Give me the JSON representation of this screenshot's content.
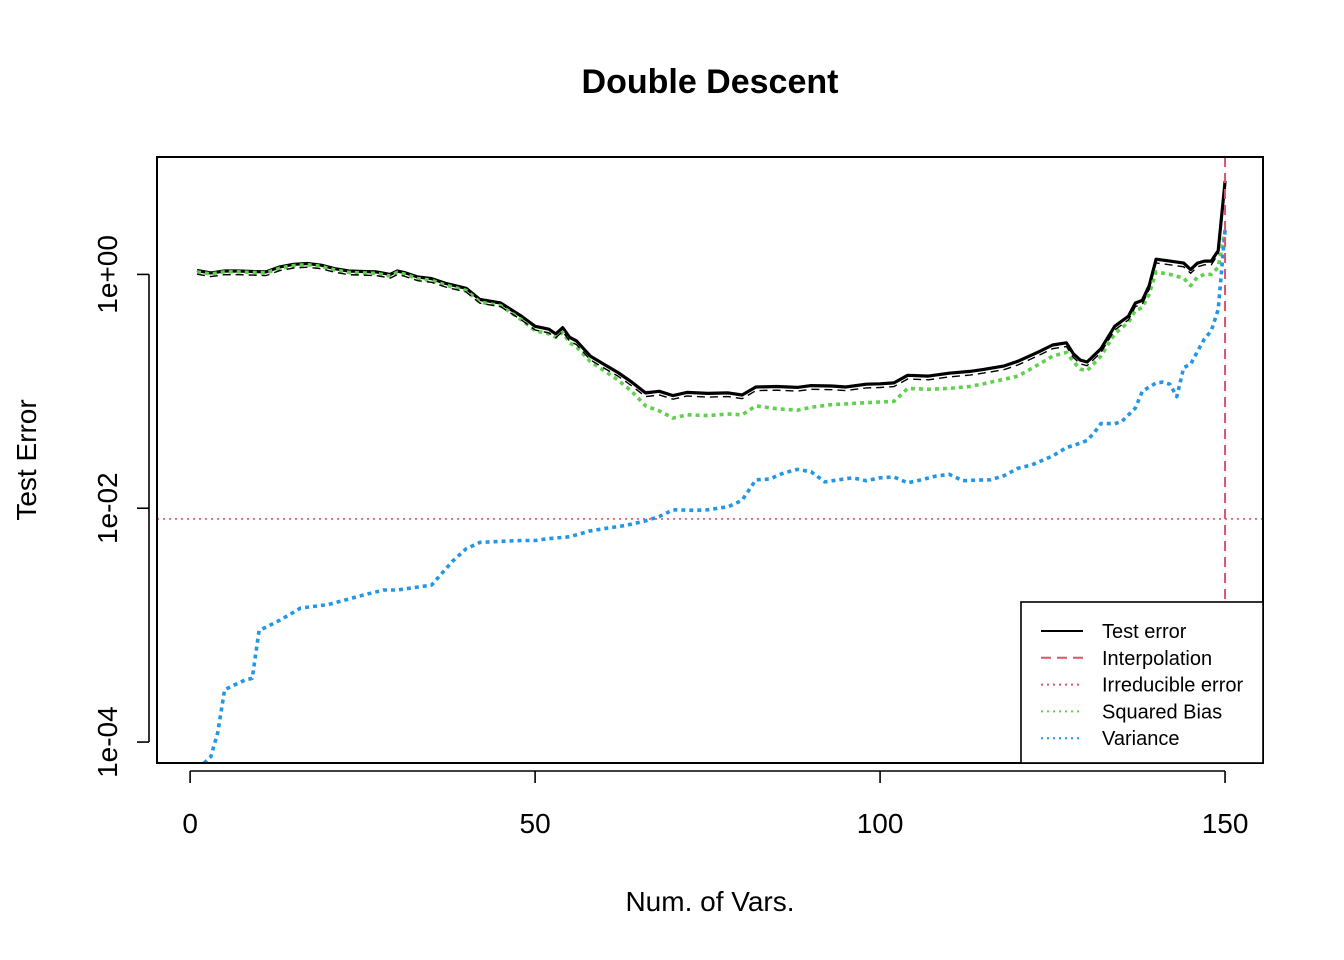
{
  "chart_data": {
    "type": "line",
    "title": "Double Descent",
    "xlabel": "Num. of Vars.",
    "ylabel": "Test Error",
    "x_ticks": [
      0,
      50,
      100,
      150
    ],
    "x_tick_labels": [
      "0",
      "50",
      "100",
      "150"
    ],
    "y_ticks": [
      0.0001,
      0.01,
      1
    ],
    "y_tick_labels": [
      "1e-04",
      "1e-02",
      "1e+00"
    ],
    "y_scale": "log",
    "xlim": [
      -4.8,
      155.5
    ],
    "ylim": [
      6.62e-05,
      10.1
    ],
    "grid": false,
    "legend_position": "bottom-right",
    "legend": [
      {
        "name": "Test error",
        "color": "#000000",
        "style": "solid"
      },
      {
        "name": "Interpolation",
        "color": "#DF536B",
        "style": "dashed"
      },
      {
        "name": "Irreducible error",
        "color": "#DF536B",
        "style": "dotted"
      },
      {
        "name": "Squared Bias",
        "color": "#61D04F",
        "style": "dotted"
      },
      {
        "name": "Variance",
        "color": "#2297E6",
        "style": "dotted"
      }
    ],
    "interpolation_x": 150,
    "irreducible_error": 0.0081,
    "series": [
      {
        "name": "Test error",
        "color": "#000000",
        "x": [
          1,
          3,
          5,
          7,
          9,
          11,
          13,
          15,
          17,
          19,
          21,
          23,
          25,
          27,
          29,
          30,
          31,
          33,
          35,
          37,
          40,
          42,
          45,
          48,
          50,
          52,
          53,
          54,
          55,
          56,
          58,
          60,
          62,
          64,
          66,
          68,
          70,
          72,
          75,
          78,
          80,
          82,
          85,
          88,
          90,
          93,
          95,
          98,
          100,
          102,
          104,
          107,
          110,
          113,
          115,
          118,
          120,
          123,
          125,
          127,
          128,
          129,
          130,
          132,
          134,
          136,
          137,
          138,
          139,
          140,
          142,
          144,
          145,
          146,
          147,
          148,
          149,
          150
        ],
        "y": [
          1.08,
          1.03,
          1.07,
          1.07,
          1.06,
          1.05,
          1.16,
          1.22,
          1.24,
          1.2,
          1.12,
          1.07,
          1.06,
          1.05,
          1.0,
          1.07,
          1.04,
          0.95,
          0.92,
          0.84,
          0.76,
          0.61,
          0.57,
          0.44,
          0.36,
          0.34,
          0.31,
          0.35,
          0.29,
          0.27,
          0.2,
          0.17,
          0.145,
          0.12,
          0.097,
          0.1,
          0.092,
          0.098,
          0.096,
          0.097,
          0.093,
          0.109,
          0.11,
          0.108,
          0.112,
          0.111,
          0.109,
          0.115,
          0.116,
          0.118,
          0.137,
          0.135,
          0.143,
          0.148,
          0.154,
          0.165,
          0.181,
          0.218,
          0.249,
          0.26,
          0.21,
          0.185,
          0.178,
          0.231,
          0.36,
          0.44,
          0.57,
          0.6,
          0.8,
          1.35,
          1.3,
          1.25,
          1.1,
          1.25,
          1.3,
          1.3,
          1.6,
          6.3
        ]
      },
      {
        "name": "Squared Bias",
        "color": "#61D04F",
        "x": [
          1,
          3,
          5,
          7,
          9,
          11,
          13,
          15,
          17,
          19,
          21,
          23,
          25,
          27,
          29,
          30,
          31,
          33,
          35,
          37,
          40,
          42,
          45,
          48,
          50,
          52,
          53,
          54,
          55,
          56,
          58,
          60,
          62,
          64,
          66,
          68,
          70,
          72,
          75,
          78,
          80,
          82,
          85,
          88,
          90,
          93,
          95,
          98,
          100,
          102,
          104,
          107,
          110,
          113,
          115,
          118,
          120,
          123,
          125,
          127,
          128,
          129,
          130,
          132,
          134,
          136,
          137,
          138,
          139,
          140,
          142,
          144,
          145,
          146,
          147,
          148,
          149,
          150
        ],
        "y": [
          1.05,
          1.01,
          1.05,
          1.05,
          1.04,
          1.03,
          1.13,
          1.19,
          1.21,
          1.17,
          1.09,
          1.04,
          1.03,
          1.02,
          0.97,
          1.04,
          1.01,
          0.92,
          0.89,
          0.81,
          0.73,
          0.58,
          0.54,
          0.41,
          0.33,
          0.31,
          0.29,
          0.32,
          0.26,
          0.24,
          0.18,
          0.15,
          0.125,
          0.1,
          0.075,
          0.068,
          0.059,
          0.063,
          0.062,
          0.064,
          0.063,
          0.075,
          0.071,
          0.069,
          0.073,
          0.077,
          0.078,
          0.08,
          0.081,
          0.082,
          0.106,
          0.104,
          0.106,
          0.11,
          0.116,
          0.127,
          0.135,
          0.17,
          0.2,
          0.215,
          0.18,
          0.155,
          0.15,
          0.2,
          0.31,
          0.39,
          0.49,
          0.52,
          0.68,
          1.05,
          1.0,
          0.93,
          0.8,
          0.95,
          1.0,
          1.0,
          1.15,
          2.4
        ]
      },
      {
        "name": "Variance",
        "color": "#2297E6",
        "x": [
          2,
          3,
          4,
          5,
          6,
          8,
          9,
          10,
          13,
          16,
          20,
          25,
          28,
          30,
          35,
          38,
          40,
          42,
          45,
          48,
          50,
          52,
          55,
          58,
          60,
          63,
          66,
          68,
          70,
          73,
          75,
          78,
          80,
          82,
          84,
          86,
          88,
          90,
          92,
          94,
          96,
          98,
          100,
          102,
          104,
          106,
          108,
          110,
          112,
          114,
          116,
          118,
          120,
          122,
          125,
          127,
          129,
          130,
          131,
          132,
          134,
          135,
          137,
          138,
          140,
          141,
          142,
          143,
          144,
          145,
          146,
          147,
          148,
          149,
          150
        ],
        "y": [
          6.6e-05,
          7.5e-05,
          0.00012,
          0.00028,
          0.0003,
          0.00034,
          0.00035,
          0.0009,
          0.0011,
          0.0014,
          0.0015,
          0.0018,
          0.002,
          0.002,
          0.0022,
          0.0035,
          0.0045,
          0.0051,
          0.0052,
          0.0053,
          0.0053,
          0.0055,
          0.0057,
          0.0064,
          0.0067,
          0.0071,
          0.0078,
          0.0085,
          0.0097,
          0.0096,
          0.0097,
          0.0103,
          0.0117,
          0.0175,
          0.0178,
          0.02,
          0.0215,
          0.0205,
          0.0168,
          0.0175,
          0.0182,
          0.0172,
          0.0182,
          0.0185,
          0.0165,
          0.0175,
          0.0188,
          0.0195,
          0.0172,
          0.0174,
          0.0175,
          0.019,
          0.022,
          0.0235,
          0.028,
          0.033,
          0.036,
          0.038,
          0.044,
          0.053,
          0.053,
          0.055,
          0.072,
          0.1,
          0.118,
          0.12,
          0.115,
          0.09,
          0.16,
          0.17,
          0.22,
          0.28,
          0.33,
          0.5,
          2.4
        ]
      }
    ]
  }
}
